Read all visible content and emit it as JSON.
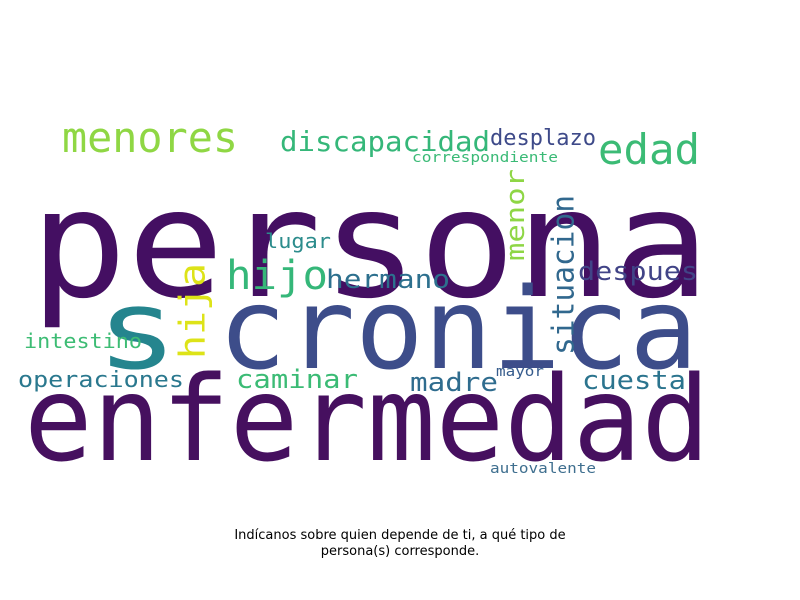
{
  "words": [
    {
      "id": "persona",
      "text": "persona",
      "color": "#440f62"
    },
    {
      "id": "enfermedad",
      "text": "enfermedad",
      "color": "#46105f"
    },
    {
      "id": "cronica",
      "text": "cronica",
      "color": "#3d4d8a"
    },
    {
      "id": "s",
      "text": "s",
      "color": "#25858e"
    },
    {
      "id": "menores",
      "text": "menores",
      "color": "#8fd744"
    },
    {
      "id": "discapacidad",
      "text": "discapacidad",
      "color": "#35b779"
    },
    {
      "id": "desplazo",
      "text": "desplazo",
      "color": "#3e4a89"
    },
    {
      "id": "edad",
      "text": "edad",
      "color": "#3bbb75"
    },
    {
      "id": "correspondiente",
      "text": "correspondiente",
      "color": "#3aba76"
    },
    {
      "id": "menor",
      "text": "menor",
      "color": "#8ed645"
    },
    {
      "id": "situacion",
      "text": "situacion",
      "color": "#31688e"
    },
    {
      "id": "lugar",
      "text": "lugar",
      "color": "#2c8c8c"
    },
    {
      "id": "hijo",
      "text": "hijo",
      "color": "#35b779"
    },
    {
      "id": "hermano",
      "text": "hermano",
      "color": "#2d708e"
    },
    {
      "id": "despues",
      "text": "despues",
      "color": "#414487"
    },
    {
      "id": "hija",
      "text": "hija",
      "color": "#dde318"
    },
    {
      "id": "intestino",
      "text": "intestino",
      "color": "#3dbc74"
    },
    {
      "id": "operaciones",
      "text": "operaciones",
      "color": "#2a788e"
    },
    {
      "id": "caminar",
      "text": "caminar",
      "color": "#3bbb75"
    },
    {
      "id": "madre",
      "text": "madre",
      "color": "#2f6c8e"
    },
    {
      "id": "mayor",
      "text": "mayor",
      "color": "#365c8d"
    },
    {
      "id": "cuesta",
      "text": "cuesta",
      "color": "#2b748e"
    },
    {
      "id": "autovalente",
      "text": "autovalente",
      "color": "#3f6f8f"
    }
  ],
  "caption": {
    "line1": "Indícanos sobre quien depende de ti, a qué tipo de",
    "line2": "persona(s) corresponde."
  }
}
